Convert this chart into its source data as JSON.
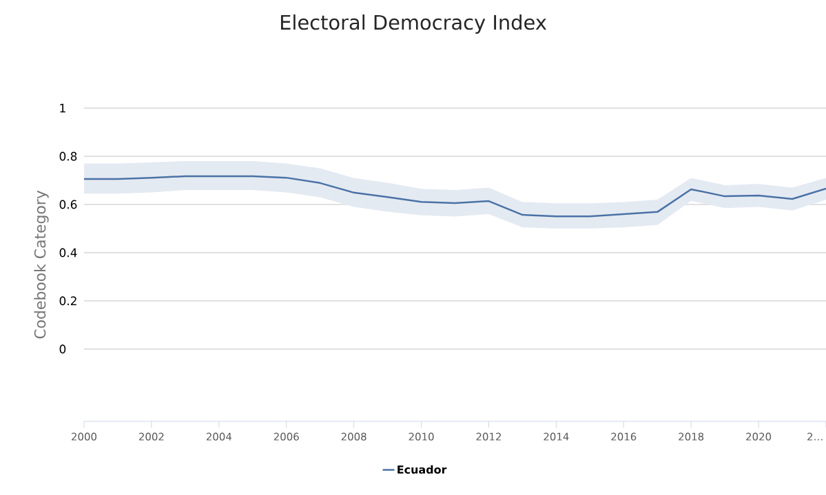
{
  "chart_data": {
    "type": "line",
    "title": "Electoral Democracy Index",
    "ylabel": "Codebook Category",
    "x": [
      2000,
      2001,
      2002,
      2003,
      2004,
      2005,
      2006,
      2007,
      2008,
      2009,
      2010,
      2011,
      2012,
      2013,
      2014,
      2015,
      2016,
      2017,
      2018,
      2019,
      2020,
      2021,
      2022
    ],
    "series": [
      {
        "name": "Ecuador",
        "color": "#4a72a5",
        "values": [
          0.706,
          0.706,
          0.711,
          0.717,
          0.717,
          0.717,
          0.711,
          0.689,
          0.649,
          0.631,
          0.611,
          0.606,
          0.614,
          0.557,
          0.551,
          0.551,
          0.56,
          0.569,
          0.663,
          0.634,
          0.637,
          0.623,
          0.666
        ],
        "upper": [
          0.77,
          0.77,
          0.775,
          0.78,
          0.78,
          0.78,
          0.77,
          0.75,
          0.71,
          0.69,
          0.665,
          0.66,
          0.67,
          0.61,
          0.605,
          0.605,
          0.61,
          0.62,
          0.71,
          0.68,
          0.685,
          0.67,
          0.71
        ],
        "lower": [
          0.645,
          0.645,
          0.65,
          0.66,
          0.66,
          0.66,
          0.65,
          0.63,
          0.59,
          0.57,
          0.555,
          0.55,
          0.56,
          0.505,
          0.5,
          0.5,
          0.505,
          0.515,
          0.615,
          0.585,
          0.59,
          0.575,
          0.62
        ]
      }
    ],
    "xlim": [
      2000,
      2022
    ],
    "ylim": [
      -0.3,
      1
    ],
    "xticks": [
      2000,
      2002,
      2004,
      2006,
      2008,
      2010,
      2012,
      2014,
      2016,
      2018,
      2020,
      {
        "value": 2022,
        "label": "2…"
      }
    ],
    "yticks": [
      0,
      0.2,
      0.4,
      0.6,
      0.8,
      1
    ],
    "grid": "y",
    "legend": "bottom",
    "marker": "none",
    "line_style": "solid"
  }
}
